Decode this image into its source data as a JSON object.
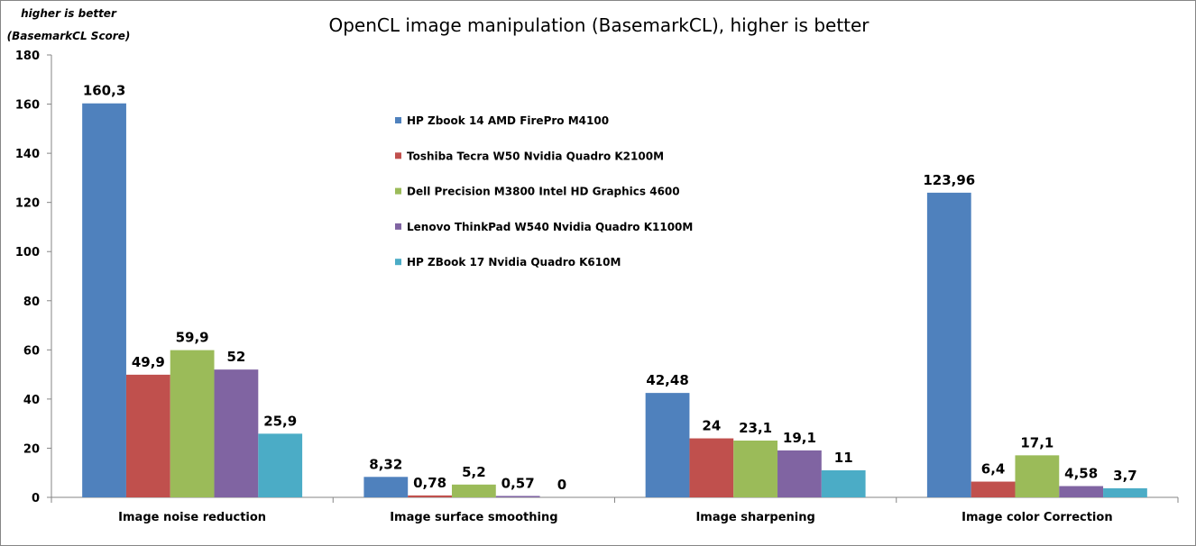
{
  "chart_data": {
    "type": "bar",
    "title": "OpenCL image manipulation (BasemarkCL), higher is better",
    "ylabel_line1": "higher is better",
    "ylabel_line2": "(BasemarkCL Score)",
    "ylim": [
      0,
      180
    ],
    "yticks": [
      "0",
      "20",
      "40",
      "60",
      "80",
      "100",
      "120",
      "140",
      "160",
      "180"
    ],
    "grid": false,
    "legend_position": "inside-top-center",
    "categories": [
      "Image noise reduction",
      "Image surface smoothing",
      "Image sharpening",
      "Image color Correction"
    ],
    "series": [
      {
        "name": "HP Zbook 14 AMD FirePro M4100",
        "color": "#4F81BD",
        "values": [
          160.3,
          8.32,
          42.48,
          123.96
        ],
        "labels": [
          "160,3",
          "8,32",
          "42,48",
          "123,96"
        ]
      },
      {
        "name": "Toshiba Tecra W50 Nvidia Quadro K2100M",
        "color": "#C0504D",
        "values": [
          49.9,
          0.78,
          24,
          6.4
        ],
        "labels": [
          "49,9",
          "0,78",
          "24",
          "6,4"
        ]
      },
      {
        "name": "Dell Precision M3800 Intel HD Graphics 4600",
        "color": "#9BBB59",
        "values": [
          59.9,
          5.2,
          23.1,
          17.1
        ],
        "labels": [
          "59,9",
          "5,2",
          "23,1",
          "17,1"
        ]
      },
      {
        "name": "Lenovo ThinkPad W540 Nvidia Quadro K1100M",
        "color": "#8064A2",
        "values": [
          52,
          0.57,
          19.1,
          4.58
        ],
        "labels": [
          "52",
          "0,57",
          "19,1",
          "4,58"
        ]
      },
      {
        "name": "HP ZBook 17 Nvidia Quadro K610M",
        "color": "#4BACC6",
        "values": [
          25.9,
          0,
          11,
          3.7
        ],
        "labels": [
          "25,9",
          "0",
          "11",
          "3,7"
        ]
      }
    ]
  }
}
